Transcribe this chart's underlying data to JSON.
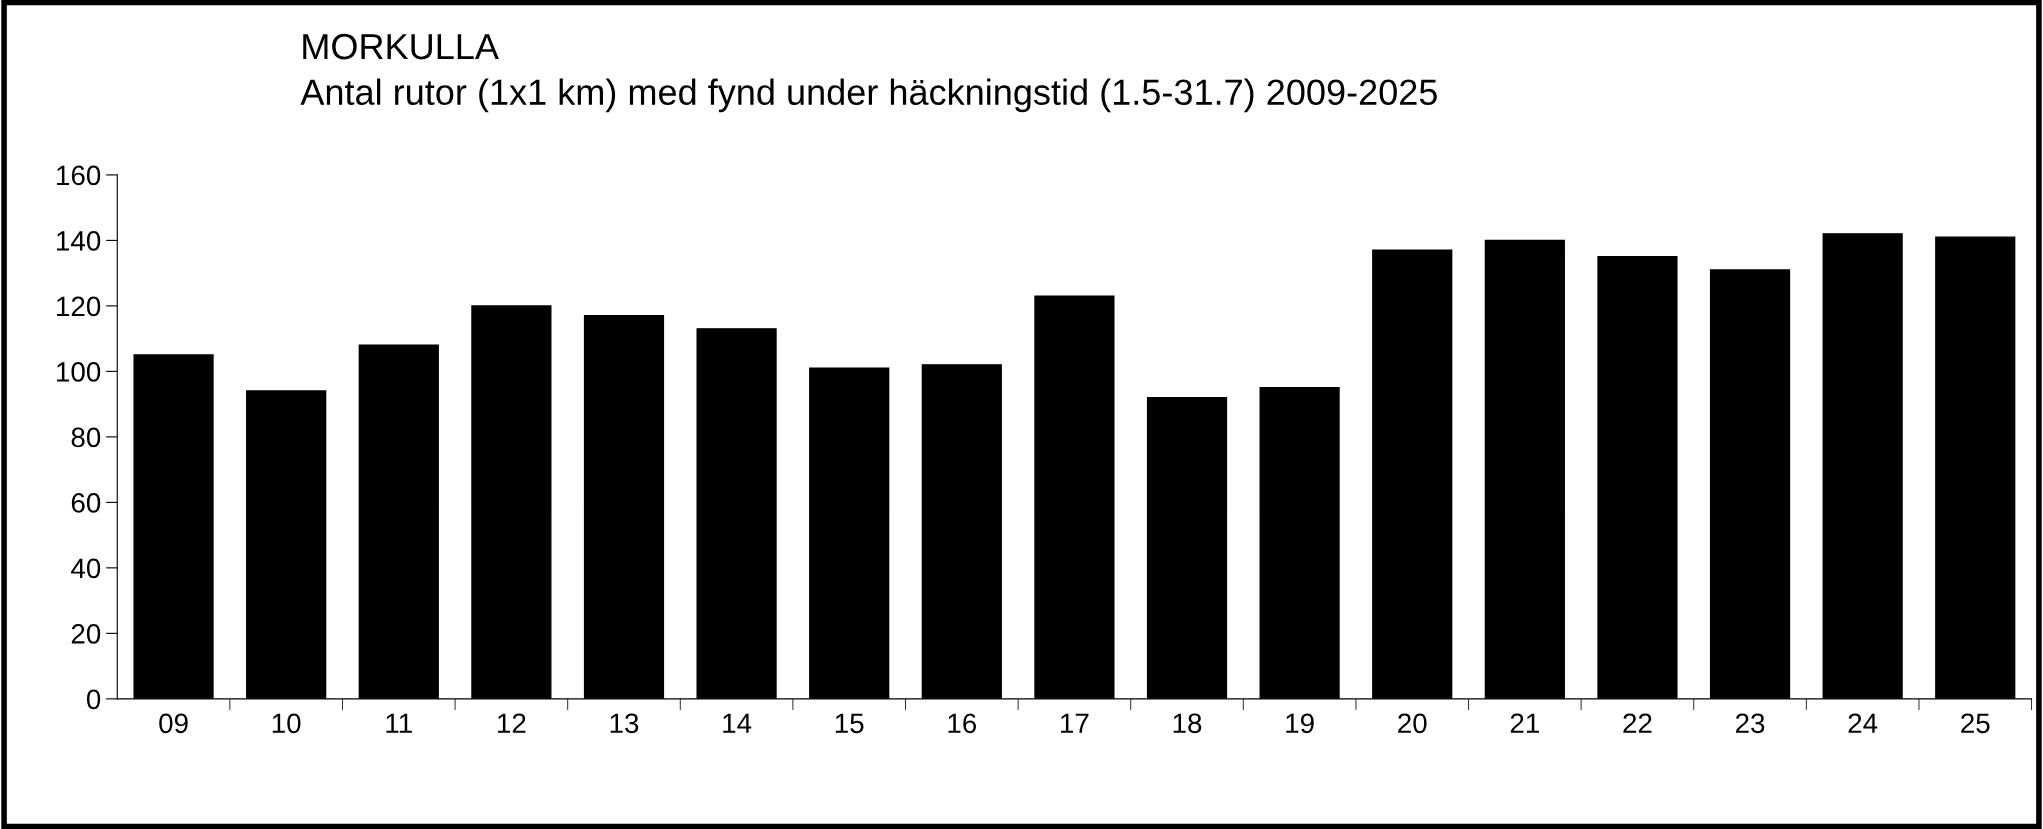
{
  "chart_data": {
    "type": "bar",
    "title": "MORKULLA",
    "subtitle": "Antal rutor (1x1 km) med fynd under häckningstid (1.5-31.7) 2009-2025",
    "categories": [
      "09",
      "10",
      "11",
      "12",
      "13",
      "14",
      "15",
      "16",
      "17",
      "18",
      "19",
      "20",
      "21",
      "22",
      "23",
      "24",
      "25"
    ],
    "values": [
      105,
      94,
      108,
      120,
      117,
      113,
      101,
      102,
      123,
      92,
      95,
      137,
      140,
      135,
      131,
      142,
      141
    ],
    "color": "#000000",
    "ylim": [
      0,
      160
    ],
    "yticks": [
      0,
      20,
      40,
      60,
      80,
      100,
      120,
      140,
      160
    ],
    "grid": false,
    "legend": false
  }
}
